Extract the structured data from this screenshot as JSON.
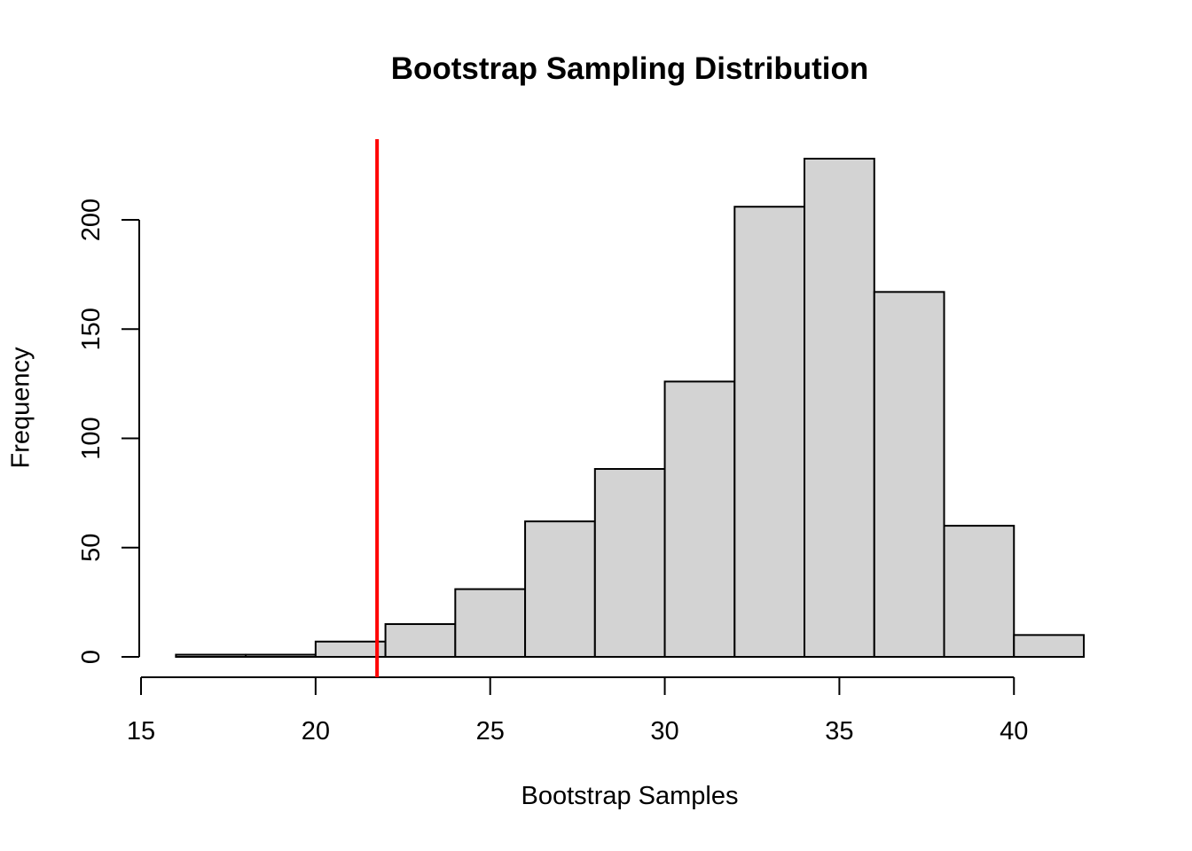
{
  "chart_data": {
    "type": "bar",
    "subtype": "histogram",
    "title": "Bootstrap Sampling Distribution",
    "xlabel": "Bootstrap Samples",
    "ylabel": "Frequency",
    "bins": [
      {
        "from": 16,
        "to": 18,
        "count": 1
      },
      {
        "from": 18,
        "to": 20,
        "count": 1
      },
      {
        "from": 20,
        "to": 22,
        "count": 7
      },
      {
        "from": 22,
        "to": 24,
        "count": 15
      },
      {
        "from": 24,
        "to": 26,
        "count": 31
      },
      {
        "from": 26,
        "to": 28,
        "count": 62
      },
      {
        "from": 28,
        "to": 30,
        "count": 86
      },
      {
        "from": 30,
        "to": 32,
        "count": 126
      },
      {
        "from": 32,
        "to": 34,
        "count": 206
      },
      {
        "from": 34,
        "to": 36,
        "count": 228
      },
      {
        "from": 36,
        "to": 38,
        "count": 167
      },
      {
        "from": 38,
        "to": 40,
        "count": 60
      },
      {
        "from": 40,
        "to": 42,
        "count": 10
      }
    ],
    "categories": [
      "16-18",
      "18-20",
      "20-22",
      "22-24",
      "24-26",
      "26-28",
      "28-30",
      "30-32",
      "32-34",
      "34-36",
      "36-38",
      "38-40",
      "40-42"
    ],
    "values": [
      1,
      1,
      7,
      15,
      31,
      62,
      86,
      126,
      206,
      228,
      167,
      60,
      10
    ],
    "x_ticks": [
      15,
      20,
      25,
      30,
      35,
      40
    ],
    "y_ticks": [
      0,
      50,
      100,
      150,
      200
    ],
    "xlim": [
      15,
      42
    ],
    "ylim": [
      0,
      228
    ],
    "vline": {
      "x": 21.76,
      "color": "#ff0000"
    },
    "bar_fill": "#d3d3d3",
    "bar_edge": "#000000",
    "grid": false,
    "legend": null
  }
}
